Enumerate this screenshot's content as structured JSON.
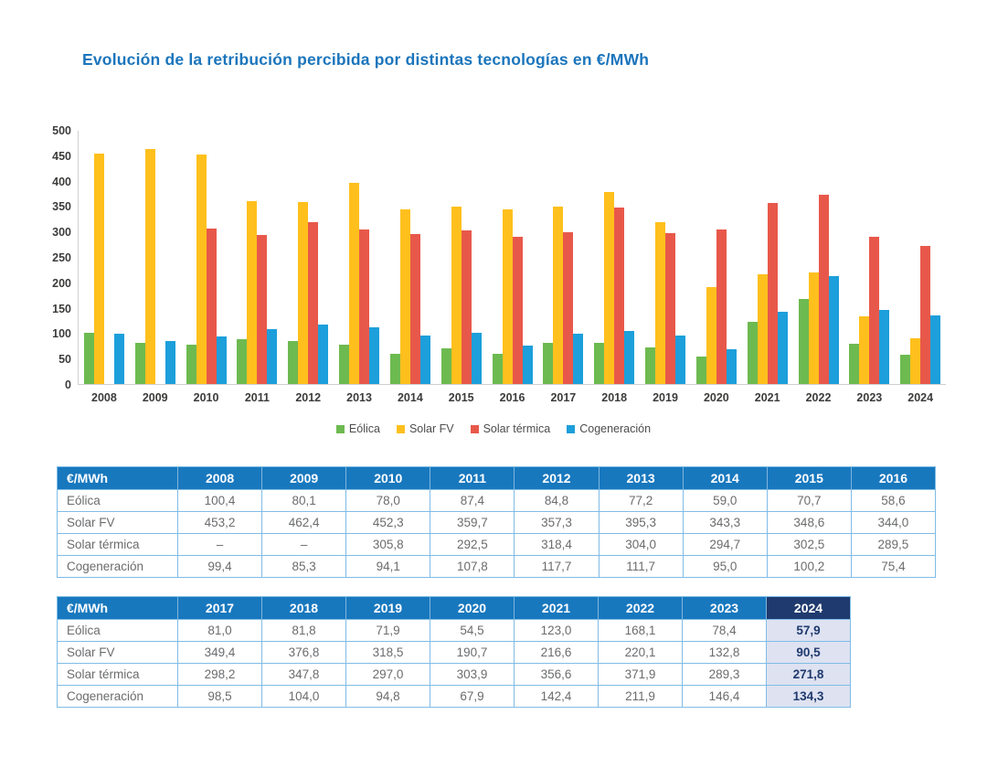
{
  "title": "Evolución de la retribución percibida por distintas tecnologías en €/MWh",
  "colors": {
    "title_blue": "#1B75BC",
    "table_header_blue": "#1878BE",
    "highlight_navy": "#1F3A6E",
    "highlight_cell_bg": "#DEE2F1",
    "table_border_blue": "#7FBCE6",
    "eolica_green": "#6DBA50",
    "solar_fv_yellow": "#FFC01D",
    "solar_termica_red": "#E8584A",
    "cogeneracion_blue": "#1C9FDB"
  },
  "chart_data": {
    "type": "bar",
    "title": "Evolución de la retribución percibida por distintas tecnologías en €/MWh",
    "categories": [
      "2008",
      "2009",
      "2010",
      "2011",
      "2012",
      "2013",
      "2014",
      "2015",
      "2016",
      "2017",
      "2018",
      "2019",
      "2020",
      "2021",
      "2022",
      "2023",
      "2024"
    ],
    "series": [
      {
        "name": "Eólica",
        "color": "#6DBA50",
        "values": [
          100.4,
          80.1,
          78.0,
          87.4,
          84.8,
          77.2,
          59.0,
          70.7,
          58.6,
          81.0,
          81.8,
          71.9,
          54.5,
          123.0,
          168.1,
          78.4,
          57.9
        ]
      },
      {
        "name": "Solar FV",
        "color": "#FFC01D",
        "values": [
          453.2,
          462.4,
          452.3,
          359.7,
          357.3,
          395.3,
          343.3,
          348.6,
          344.0,
          349.4,
          376.8,
          318.5,
          190.7,
          216.6,
          220.1,
          132.8,
          90.5
        ]
      },
      {
        "name": "Solar térmica",
        "color": "#E8584A",
        "values": [
          null,
          null,
          305.8,
          292.5,
          318.4,
          304.0,
          294.7,
          302.5,
          289.5,
          298.2,
          347.8,
          297.0,
          303.9,
          356.6,
          371.9,
          289.3,
          271.8
        ]
      },
      {
        "name": "Cogeneración",
        "color": "#1C9FDB",
        "values": [
          99.4,
          85.3,
          94.1,
          107.8,
          117.7,
          111.7,
          95.0,
          100.2,
          75.4,
          98.5,
          104.0,
          94.8,
          67.9,
          142.4,
          211.9,
          146.4,
          134.3
        ]
      }
    ],
    "xlabel": "",
    "ylabel": "",
    "ylim": [
      0,
      500
    ],
    "yticks": [
      0,
      50,
      100,
      150,
      200,
      250,
      300,
      350,
      400,
      450,
      500
    ],
    "grid": false,
    "legend_position": "bottom"
  },
  "legend": [
    {
      "label": "Eólica",
      "color": "#6DBA50"
    },
    {
      "label": "Solar FV",
      "color": "#FFC01D"
    },
    {
      "label": "Solar térmica",
      "color": "#E8584A"
    },
    {
      "label": "Cogeneración",
      "color": "#1C9FDB"
    }
  ],
  "tables": [
    {
      "unit_header": "€/MWh",
      "years": [
        "2008",
        "2009",
        "2010",
        "2011",
        "2012",
        "2013",
        "2014",
        "2015",
        "2016"
      ],
      "rows": [
        {
          "label": "Eólica",
          "values": [
            "100,4",
            "80,1",
            "78,0",
            "87,4",
            "84,8",
            "77,2",
            "59,0",
            "70,7",
            "58,6"
          ]
        },
        {
          "label": "Solar FV",
          "values": [
            "453,2",
            "462,4",
            "452,3",
            "359,7",
            "357,3",
            "395,3",
            "343,3",
            "348,6",
            "344,0"
          ]
        },
        {
          "label": "Solar térmica",
          "values": [
            "–",
            "–",
            "305,8",
            "292,5",
            "318,4",
            "304,0",
            "294,7",
            "302,5",
            "289,5"
          ]
        },
        {
          "label": "Cogeneración",
          "values": [
            "99,4",
            "85,3",
            "94,1",
            "107,8",
            "117,7",
            "111,7",
            "95,0",
            "100,2",
            "75,4"
          ]
        }
      ],
      "highlight_last_column": false
    },
    {
      "unit_header": "€/MWh",
      "years": [
        "2017",
        "2018",
        "2019",
        "2020",
        "2021",
        "2022",
        "2023",
        "2024"
      ],
      "rows": [
        {
          "label": "Eólica",
          "values": [
            "81,0",
            "81,8",
            "71,9",
            "54,5",
            "123,0",
            "168,1",
            "78,4",
            "57,9"
          ]
        },
        {
          "label": "Solar FV",
          "values": [
            "349,4",
            "376,8",
            "318,5",
            "190,7",
            "216,6",
            "220,1",
            "132,8",
            "90,5"
          ]
        },
        {
          "label": "Solar térmica",
          "values": [
            "298,2",
            "347,8",
            "297,0",
            "303,9",
            "356,6",
            "371,9",
            "289,3",
            "271,8"
          ]
        },
        {
          "label": "Cogeneración",
          "values": [
            "98,5",
            "104,0",
            "94,8",
            "67,9",
            "142,4",
            "211,9",
            "146,4",
            "134,3"
          ]
        }
      ],
      "highlight_last_column": true
    }
  ]
}
